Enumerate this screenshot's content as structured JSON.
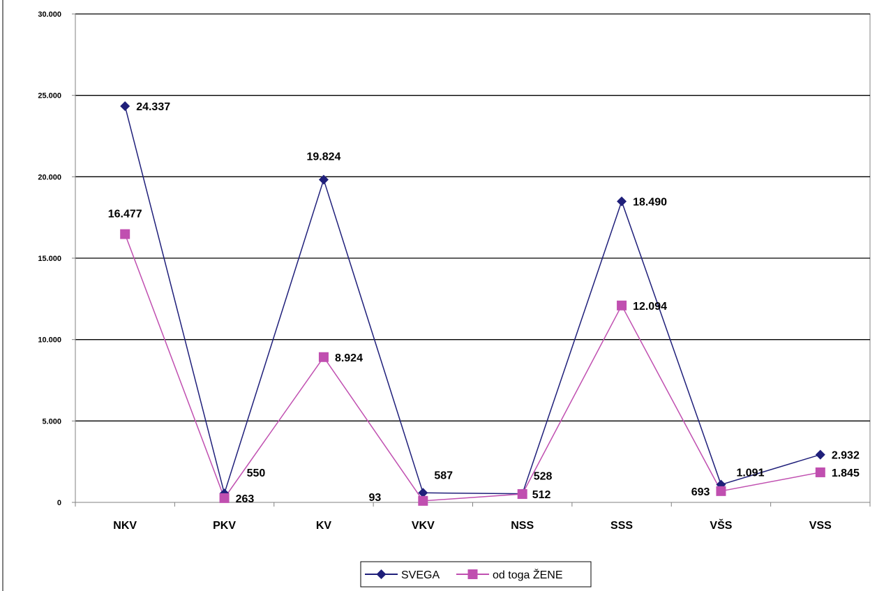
{
  "chart_data": {
    "type": "line",
    "categories": [
      "NKV",
      "PKV",
      "KV",
      "VKV",
      "NSS",
      "SSS",
      "VŠS",
      "VSS"
    ],
    "series": [
      {
        "name": "SVEGA",
        "values": [
          24337,
          550,
          19824,
          587,
          528,
          18490,
          1091,
          2932
        ],
        "color": "#1f1f7a",
        "marker": "diamond"
      },
      {
        "name": "od toga ŽENE",
        "values": [
          16477,
          263,
          8924,
          93,
          512,
          12094,
          693,
          1845
        ],
        "color": "#c04fb0",
        "marker": "square"
      }
    ],
    "data_labels": [
      [
        "24.337",
        "550",
        "19.824",
        "587",
        "528",
        "18.490",
        "1.091",
        "2.932"
      ],
      [
        "16.477",
        "263",
        "8.924",
        "93",
        "512",
        "12.094",
        "693",
        "1.845"
      ]
    ],
    "yticks": [
      0,
      5000,
      10000,
      15000,
      20000,
      25000,
      30000
    ],
    "ytick_labels": [
      "0",
      "5.000",
      "10.000",
      "15.000",
      "20.000",
      "25.000",
      "30.000"
    ],
    "ylim": [
      0,
      30000
    ],
    "grid": true,
    "legend_position": "bottom-center"
  }
}
